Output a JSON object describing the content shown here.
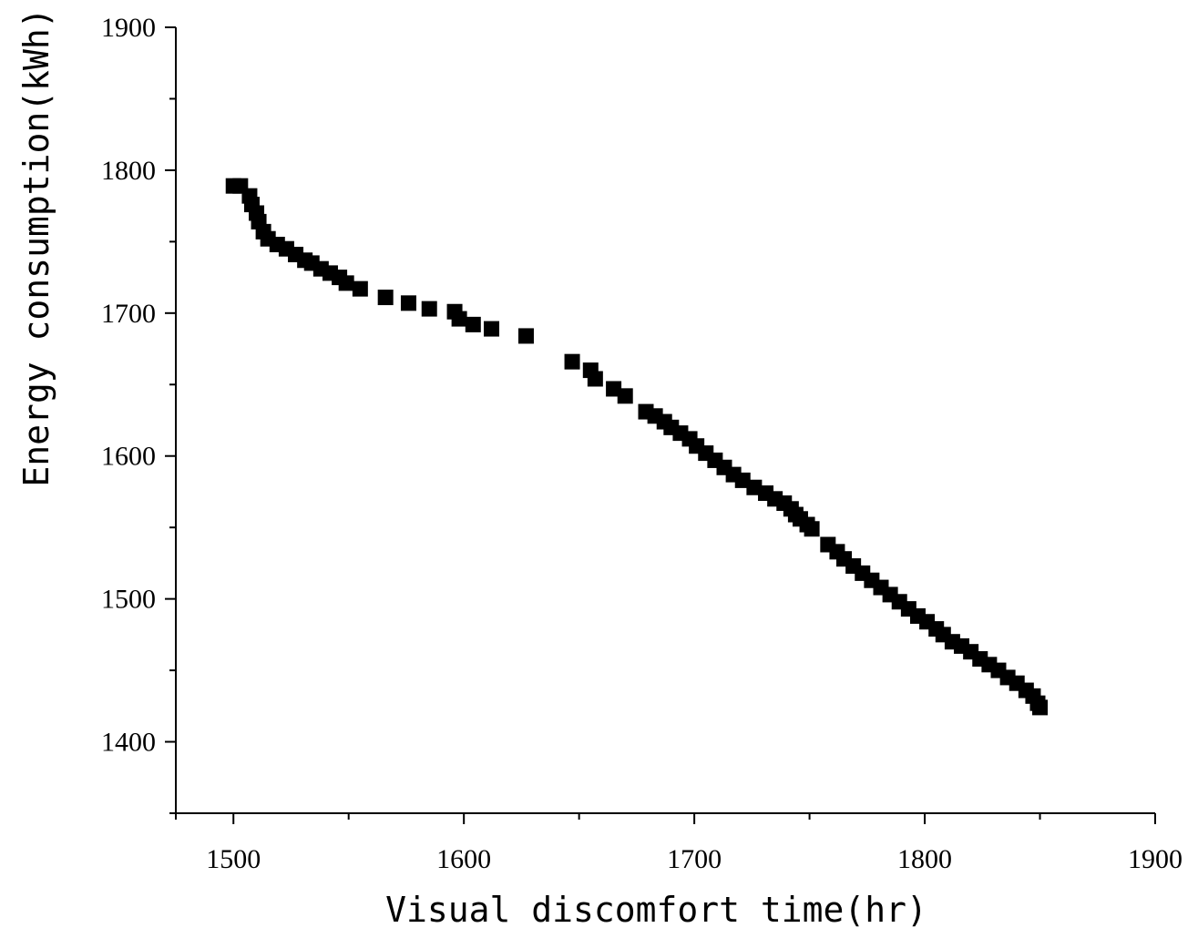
{
  "chart_data": {
    "type": "scatter",
    "title": "",
    "xlabel": "Visual discomfort time(hr)",
    "ylabel": "Energy consumption(kWh)",
    "xlim": [
      1475,
      1900
    ],
    "ylim": [
      1350,
      1900
    ],
    "xticks": [
      1500,
      1600,
      1700,
      1800,
      1900
    ],
    "xtick_labels": [
      "1500",
      "1600",
      "1700",
      "1800",
      "1900"
    ],
    "yticks": [
      1400,
      1500,
      1600,
      1700,
      1800,
      1900
    ],
    "ytick_labels": [
      "1400",
      "1500",
      "1600",
      "1700",
      "1800",
      "1900"
    ],
    "grid": false,
    "legend": "none",
    "marker": "square",
    "marker_color": "#000000",
    "series": [
      {
        "x": [
          1500,
          1503,
          1507,
          1508,
          1510,
          1511,
          1513,
          1515,
          1519,
          1523,
          1527,
          1531,
          1534,
          1538,
          1542,
          1546,
          1549,
          1555,
          1566,
          1576,
          1585,
          1596,
          1598,
          1604,
          1612,
          1627,
          1647,
          1655,
          1657,
          1665,
          1670,
          1679,
          1683,
          1687,
          1690,
          1694,
          1698,
          1701,
          1705,
          1709,
          1713,
          1717,
          1721,
          1726,
          1731,
          1735,
          1739,
          1742,
          1744,
          1746,
          1749,
          1751,
          1758,
          1762,
          1765,
          1769,
          1773,
          1777,
          1781,
          1785,
          1789,
          1793,
          1797,
          1801,
          1805,
          1808,
          1812,
          1816,
          1820,
          1824,
          1828,
          1832,
          1836,
          1840,
          1844,
          1847,
          1849,
          1850
        ],
        "y": [
          1789,
          1789,
          1782,
          1776,
          1770,
          1764,
          1757,
          1752,
          1748,
          1745,
          1741,
          1737,
          1735,
          1731,
          1728,
          1725,
          1721,
          1717,
          1711,
          1707,
          1703,
          1701,
          1696,
          1692,
          1689,
          1684,
          1666,
          1660,
          1654,
          1647,
          1642,
          1631,
          1628,
          1624,
          1620,
          1616,
          1612,
          1607,
          1602,
          1597,
          1592,
          1587,
          1583,
          1578,
          1574,
          1570,
          1567,
          1563,
          1559,
          1556,
          1552,
          1549,
          1538,
          1533,
          1528,
          1523,
          1518,
          1513,
          1508,
          1503,
          1498,
          1493,
          1488,
          1484,
          1479,
          1475,
          1470,
          1467,
          1463,
          1458,
          1454,
          1450,
          1445,
          1441,
          1436,
          1432,
          1427,
          1424
        ]
      }
    ]
  }
}
